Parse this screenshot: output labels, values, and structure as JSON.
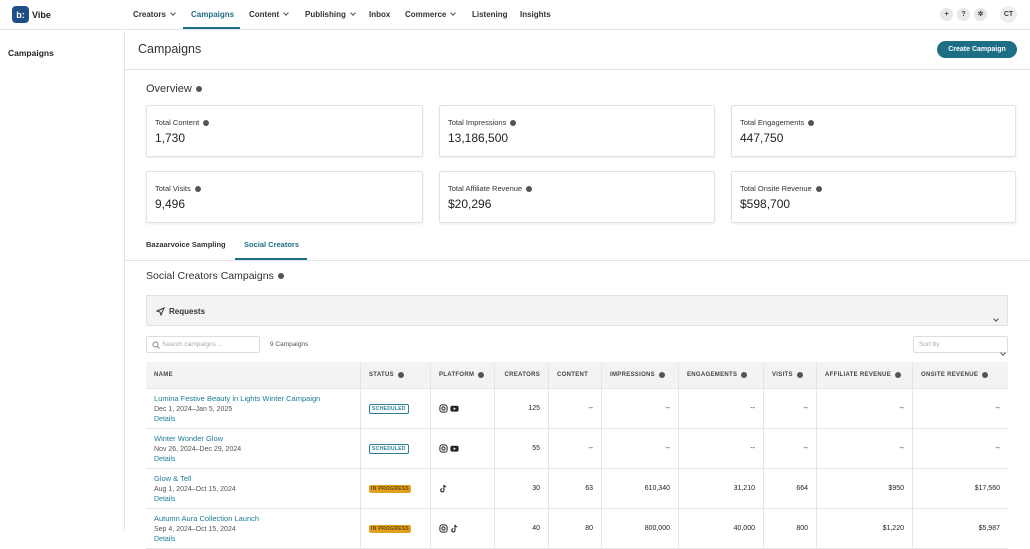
{
  "nav": {
    "brand": "Vibe",
    "items": [
      "Creators",
      "Campaigns",
      "Content",
      "Publishing",
      "Inbox",
      "Commerce",
      "Listening",
      "Insights"
    ],
    "avatar": "CT"
  },
  "sidebar": {
    "title": "Campaigns"
  },
  "header": {
    "title": "Campaigns",
    "button": "Create Campaign"
  },
  "overview": {
    "title": "Overview",
    "cards": [
      {
        "label": "Total Content",
        "value": "1,730"
      },
      {
        "label": "Total Impressions",
        "value": "13,186,500"
      },
      {
        "label": "Total Engagements",
        "value": "447,750"
      },
      {
        "label": "Total Visits",
        "value": "9,496"
      },
      {
        "label": "Total Affiliate Revenue",
        "value": "$20,296"
      },
      {
        "label": "Total Onsite Revenue",
        "value": "$598,700"
      }
    ]
  },
  "tabs": [
    "Bazaarvoice Sampling",
    "Social Creators"
  ],
  "section": {
    "title": "Social Creators Campaigns",
    "requests": "Requests",
    "search_placeholder": "Search campaigns ...",
    "count": "9 Campaigns",
    "sort": "Sort by"
  },
  "table": {
    "headers": [
      "NAME",
      "STATUS",
      "PLATFORM",
      "CREATORS",
      "CONTENT",
      "IMPRESSIONS",
      "ENGAGEMENTS",
      "VISITS",
      "AFFILIATE REVENUE",
      "ONSITE REVENUE"
    ],
    "rows": [
      {
        "name": "Lumina Festive Beauty in Lights Winter Campaign",
        "dates": "Dec 1, 2024–Jan 5, 2025",
        "details": "Details",
        "status": "SCHEDULED",
        "creators": "125",
        "content": "--",
        "impressions": "--",
        "engagements": "--",
        "visits": "--",
        "affiliate_revenue": "--",
        "onsite_revenue": "--"
      },
      {
        "name": "Winter Wonder Glow",
        "dates": "Nov 26, 2024–Dec 29, 2024",
        "details": "Details",
        "status": "SCHEDULED",
        "creators": "55",
        "content": "--",
        "impressions": "--",
        "engagements": "--",
        "visits": "--",
        "affiliate_revenue": "--",
        "onsite_revenue": "--"
      },
      {
        "name": "Glow & Tell",
        "dates": "Aug 1, 2024–Oct 15, 2024",
        "details": "Details",
        "status": "IN PROGRESS",
        "creators": "30",
        "content": "63",
        "impressions": "610,340",
        "engagements": "31,210",
        "visits": "664",
        "affiliate_revenue": "$950",
        "onsite_revenue": "$17,560"
      },
      {
        "name": "Autumn Aura Collection Launch",
        "dates": "Sep 4, 2024–Oct 15, 2024",
        "details": "Details",
        "status": "IN PROGRESS",
        "creators": "40",
        "content": "80",
        "impressions": "800,000",
        "engagements": "40,000",
        "visits": "800",
        "affiliate_revenue": "$1,220",
        "onsite_revenue": "$5,987"
      }
    ]
  }
}
